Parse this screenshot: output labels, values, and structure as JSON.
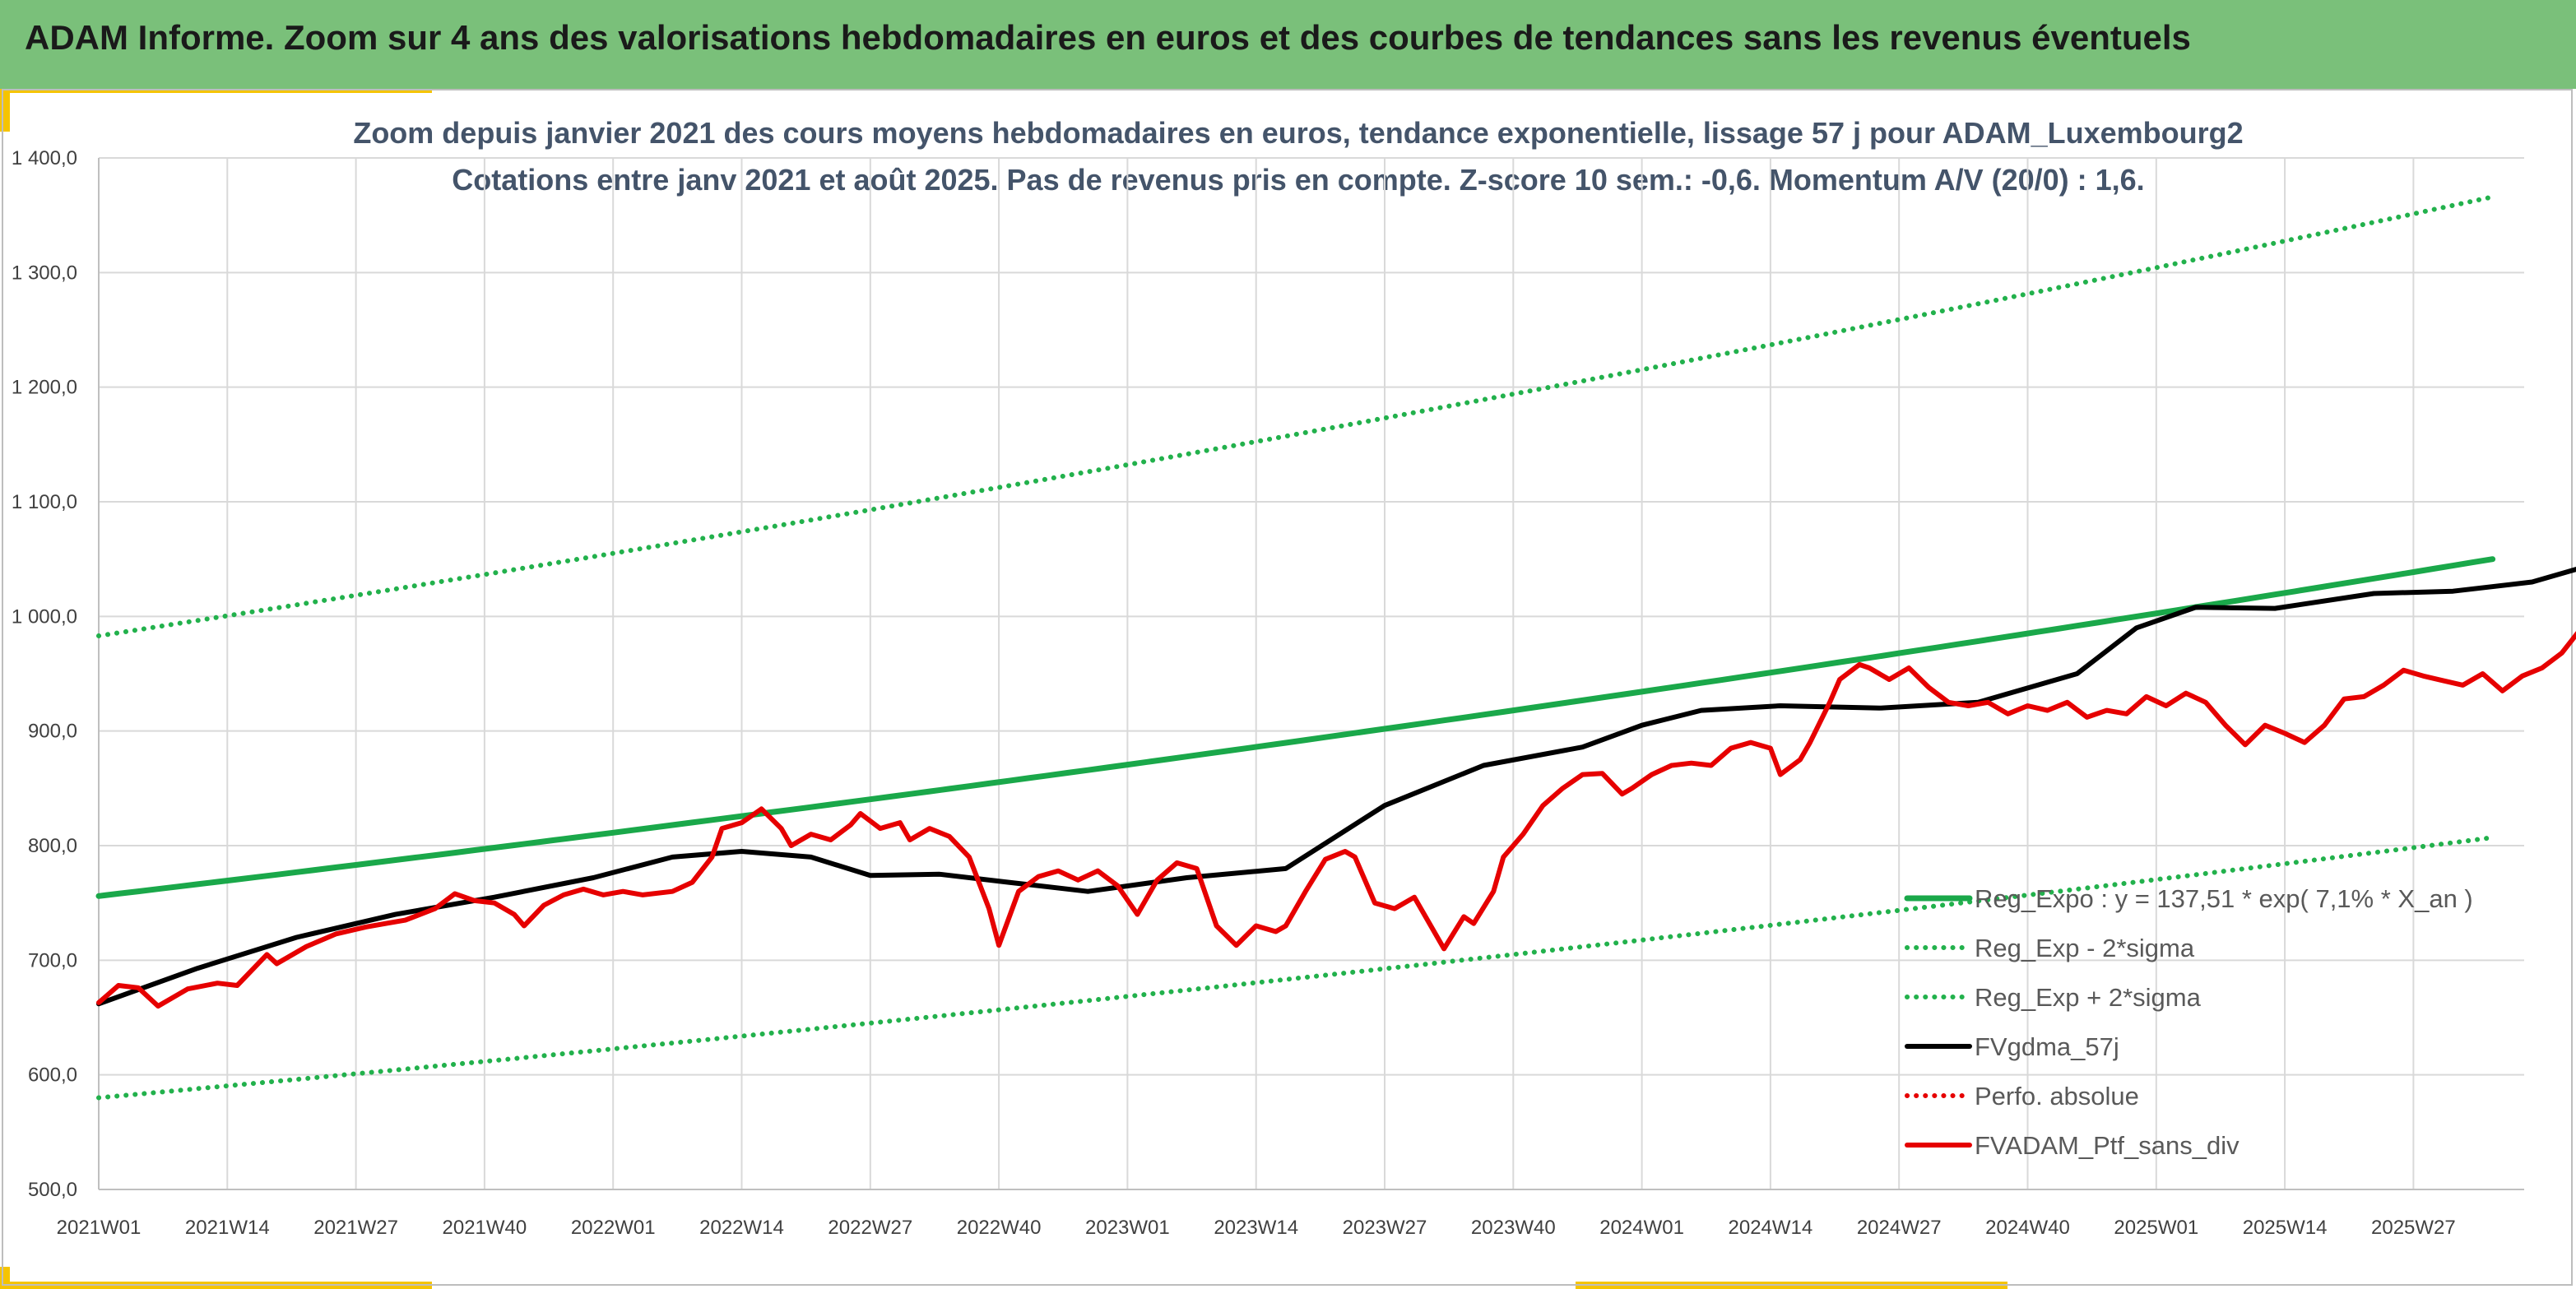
{
  "header": {
    "title": "ADAM Informe. Zoom sur 4 ans des valorisations hebdomadaires en euros et des courbes de tendances sans les revenus éventuels"
  },
  "chart_data": {
    "type": "line",
    "title_line1": "Zoom depuis janvier 2021 des cours moyens hebdomadaires en euros, tendance exponentielle, lissage 57 j pour ADAM_Luxembourg2",
    "title_line2": "Cotations entre janv 2021 et août 2025. Pas de revenus pris en compte. Z-score 10 sem.: -0,6. Momentum A/V (20/0) : 1,6.",
    "ylim": [
      500,
      1400
    ],
    "yticks": [
      "500,0",
      "600,0",
      "700,0",
      "800,0",
      "900,0",
      "1 000,0",
      "1 100,0",
      "1 200,0",
      "1 300,0",
      "1 400,0"
    ],
    "x_start": "2021W01",
    "week_count": 242,
    "xticks": [
      "2021W01",
      "2021W14",
      "2021W27",
      "2021W40",
      "2022W01",
      "2022W14",
      "2022W27",
      "2022W40",
      "2023W01",
      "2023W14",
      "2023W27",
      "2023W40",
      "2024W01",
      "2024W14",
      "2024W27",
      "2024W40",
      "2025W01",
      "2025W14",
      "2025W27"
    ],
    "grid": true,
    "legend_position": "bottom-right",
    "colors": {
      "trend": "#1aa84a",
      "band": "#22b14c",
      "smooth": "#000000",
      "price": "#e60000"
    },
    "series": [
      {
        "name": "Reg_Expo : y = 137,51 * exp( 7,1% * X_an )",
        "style": "solid-green",
        "anchors": [
          [
            0,
            756
          ],
          [
            242,
            1050
          ]
        ]
      },
      {
        "name": "Reg_Exp - 2*sigma",
        "style": "dotted-green",
        "anchors": [
          [
            0,
            580
          ],
          [
            242,
            807
          ]
        ]
      },
      {
        "name": "Reg_Exp + 2*sigma",
        "style": "dotted-green",
        "anchors": [
          [
            0,
            983
          ],
          [
            242,
            1366
          ]
        ]
      },
      {
        "name": "FVgdma_57j",
        "style": "solid-black",
        "anchors": [
          [
            0,
            662
          ],
          [
            10,
            693
          ],
          [
            20,
            720
          ],
          [
            30,
            740
          ],
          [
            40,
            755
          ],
          [
            50,
            772
          ],
          [
            58,
            790
          ],
          [
            65,
            795
          ],
          [
            72,
            790
          ],
          [
            78,
            774
          ],
          [
            85,
            775
          ],
          [
            92,
            768
          ],
          [
            100,
            760
          ],
          [
            110,
            772
          ],
          [
            120,
            780
          ],
          [
            130,
            835
          ],
          [
            140,
            870
          ],
          [
            150,
            886
          ],
          [
            156,
            905
          ],
          [
            162,
            918
          ],
          [
            170,
            922
          ],
          [
            180,
            920
          ],
          [
            190,
            925
          ],
          [
            200,
            950
          ],
          [
            206,
            990
          ],
          [
            212,
            1008
          ],
          [
            220,
            1007
          ],
          [
            230,
            1020
          ],
          [
            238,
            1022
          ],
          [
            246,
            1030
          ],
          [
            254,
            1050
          ],
          [
            262,
            1030
          ],
          [
            270,
            1015
          ],
          [
            280,
            1003
          ],
          [
            283,
            999
          ]
        ]
      },
      {
        "name": "Perfo. absolue",
        "style": "dotted-red",
        "anchors": []
      },
      {
        "name": "FVADAM_Ptf_sans_div",
        "style": "solid-red",
        "anchors": [
          [
            0,
            663
          ],
          [
            2,
            678
          ],
          [
            4,
            676
          ],
          [
            6,
            660
          ],
          [
            9,
            675
          ],
          [
            12,
            680
          ],
          [
            14,
            678
          ],
          [
            17,
            705
          ],
          [
            18,
            697
          ],
          [
            21,
            712
          ],
          [
            24,
            723
          ],
          [
            27,
            729
          ],
          [
            29,
            732
          ],
          [
            31,
            735
          ],
          [
            34,
            745
          ],
          [
            36,
            758
          ],
          [
            38,
            752
          ],
          [
            40,
            750
          ],
          [
            42,
            740
          ],
          [
            43,
            730
          ],
          [
            45,
            748
          ],
          [
            47,
            757
          ],
          [
            49,
            762
          ],
          [
            51,
            757
          ],
          [
            53,
            760
          ],
          [
            55,
            757
          ],
          [
            58,
            760
          ],
          [
            60,
            768
          ],
          [
            62,
            790
          ],
          [
            63,
            815
          ],
          [
            65,
            820
          ],
          [
            67,
            832
          ],
          [
            69,
            815
          ],
          [
            70,
            800
          ],
          [
            72,
            810
          ],
          [
            74,
            805
          ],
          [
            76,
            818
          ],
          [
            77,
            828
          ],
          [
            79,
            815
          ],
          [
            81,
            820
          ],
          [
            82,
            805
          ],
          [
            84,
            815
          ],
          [
            86,
            808
          ],
          [
            88,
            790
          ],
          [
            90,
            745
          ],
          [
            91,
            713
          ],
          [
            93,
            760
          ],
          [
            95,
            773
          ],
          [
            97,
            778
          ],
          [
            99,
            770
          ],
          [
            101,
            778
          ],
          [
            103,
            765
          ],
          [
            105,
            740
          ],
          [
            107,
            770
          ],
          [
            109,
            785
          ],
          [
            111,
            780
          ],
          [
            113,
            730
          ],
          [
            115,
            713
          ],
          [
            117,
            730
          ],
          [
            119,
            725
          ],
          [
            120,
            730
          ],
          [
            122,
            760
          ],
          [
            124,
            788
          ],
          [
            126,
            795
          ],
          [
            127,
            790
          ],
          [
            129,
            750
          ],
          [
            131,
            745
          ],
          [
            133,
            755
          ],
          [
            135,
            725
          ],
          [
            136,
            710
          ],
          [
            138,
            738
          ],
          [
            139,
            732
          ],
          [
            141,
            760
          ],
          [
            142,
            790
          ],
          [
            144,
            810
          ],
          [
            146,
            835
          ],
          [
            148,
            850
          ],
          [
            150,
            862
          ],
          [
            152,
            863
          ],
          [
            154,
            845
          ],
          [
            155,
            850
          ],
          [
            157,
            862
          ],
          [
            159,
            870
          ],
          [
            161,
            872
          ],
          [
            163,
            870
          ],
          [
            165,
            885
          ],
          [
            167,
            890
          ],
          [
            169,
            885
          ],
          [
            170,
            862
          ],
          [
            172,
            875
          ],
          [
            173,
            890
          ],
          [
            175,
            925
          ],
          [
            176,
            945
          ],
          [
            178,
            958
          ],
          [
            179,
            955
          ],
          [
            181,
            945
          ],
          [
            183,
            955
          ],
          [
            185,
            938
          ],
          [
            187,
            925
          ],
          [
            189,
            922
          ],
          [
            191,
            925
          ],
          [
            193,
            915
          ],
          [
            195,
            922
          ],
          [
            197,
            918
          ],
          [
            199,
            925
          ],
          [
            201,
            912
          ],
          [
            203,
            918
          ],
          [
            205,
            915
          ],
          [
            207,
            930
          ],
          [
            209,
            922
          ],
          [
            211,
            933
          ],
          [
            213,
            925
          ],
          [
            215,
            905
          ],
          [
            217,
            888
          ],
          [
            219,
            905
          ],
          [
            221,
            898
          ],
          [
            223,
            890
          ],
          [
            225,
            905
          ],
          [
            227,
            928
          ],
          [
            229,
            930
          ],
          [
            231,
            940
          ],
          [
            233,
            953
          ],
          [
            235,
            948
          ],
          [
            237,
            944
          ],
          [
            239,
            940
          ],
          [
            241,
            950
          ],
          [
            243,
            935
          ],
          [
            245,
            948
          ],
          [
            247,
            955
          ],
          [
            249,
            968
          ],
          [
            251,
            990
          ],
          [
            253,
            1010
          ],
          [
            255,
            1025
          ],
          [
            257,
            1035
          ],
          [
            259,
            1025
          ],
          [
            261,
            1035
          ],
          [
            263,
            1032
          ],
          [
            265,
            1040
          ],
          [
            267,
            1044
          ],
          [
            269,
            1028
          ],
          [
            271,
            1010
          ],
          [
            273,
            1025
          ],
          [
            275,
            1000
          ],
          [
            277,
            980
          ],
          [
            279,
            995
          ],
          [
            281,
            988
          ],
          [
            283,
            980
          ],
          [
            285,
            1010
          ],
          [
            287,
            990
          ],
          [
            289,
            1030
          ],
          [
            291,
            1040
          ],
          [
            293,
            1020
          ],
          [
            295,
            1015
          ],
          [
            297,
            1020
          ],
          [
            299,
            1022
          ],
          [
            301,
            1030
          ],
          [
            303,
            1022
          ],
          [
            305,
            1025
          ],
          [
            307,
            1010
          ],
          [
            309,
            1015
          ],
          [
            311,
            1000
          ],
          [
            313,
            1020
          ],
          [
            315,
            1002
          ],
          [
            317,
            1005
          ],
          [
            319,
            1015
          ],
          [
            321,
            1030
          ],
          [
            323,
            1050
          ],
          [
            325,
            1070
          ],
          [
            327,
            1080
          ],
          [
            329,
            1100
          ],
          [
            331,
            1113
          ],
          [
            333,
            1118
          ],
          [
            335,
            1100
          ],
          [
            337,
            1085
          ],
          [
            339,
            1075
          ],
          [
            340,
            1040
          ],
          [
            342,
            960
          ],
          [
            344,
            1000
          ],
          [
            346,
            1010
          ],
          [
            348,
            1000
          ],
          [
            350,
            1025
          ],
          [
            352,
            1040
          ],
          [
            354,
            1030
          ],
          [
            356,
            1020
          ],
          [
            358,
            1005
          ],
          [
            360,
            995
          ],
          [
            362,
            1000
          ],
          [
            364,
            1008
          ],
          [
            366,
            1008
          ],
          [
            368,
            1005
          ],
          [
            370,
            975
          ],
          [
            371,
            980
          ],
          [
            372,
            1005
          ],
          [
            373,
            988
          ]
        ]
      }
    ]
  }
}
